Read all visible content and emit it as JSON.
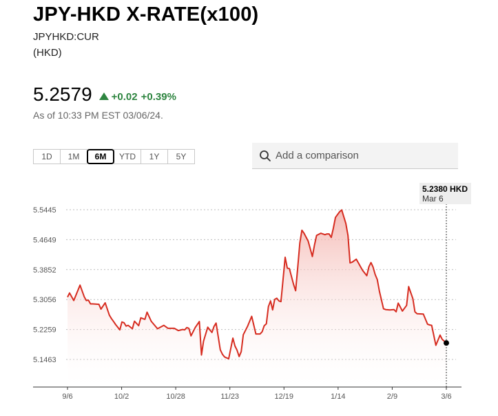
{
  "header": {
    "title": "JPY-HKD X-RATE(x100)",
    "ticker": "JPYHKD:CUR",
    "currency": "(HKD)"
  },
  "quote": {
    "price": "5.2579",
    "change": "+0.02",
    "change_pct": "+0.39%",
    "as_of": "As of 10:33 PM EST 03/06/24."
  },
  "ranges": [
    "1D",
    "1M",
    "6M",
    "YTD",
    "1Y",
    "5Y"
  ],
  "active_range": "6M",
  "compare": {
    "placeholder": "Add a comparison"
  },
  "tooltip": {
    "value": "5.2380 HKD",
    "date": "Mar 6"
  },
  "colors": {
    "line": "#d62b1f",
    "up": "#2e8540",
    "fill_top": "#f3b0aa"
  },
  "icons": {
    "search": "search-icon",
    "up": "triangle-up-icon"
  },
  "chart_data": {
    "type": "area",
    "x_ticks": [
      "9/6",
      "10/2",
      "10/28",
      "11/23",
      "12/19",
      "1/14",
      "2/9",
      "3/6"
    ],
    "y_ticks": [
      "5.5445",
      "5.4649",
      "5.3852",
      "5.3056",
      "5.2259",
      "5.1463"
    ],
    "ylim": [
      5.12,
      5.56
    ],
    "grid": true,
    "series": [
      {
        "x": [
          0,
          1,
          3,
          6,
          8,
          9,
          10,
          11,
          12,
          15,
          16,
          18,
          20,
          21,
          22,
          23,
          25,
          26,
          27,
          28,
          29,
          31,
          32,
          34,
          35,
          37,
          38,
          40,
          43,
          46,
          48,
          51,
          53,
          55,
          56,
          57,
          58,
          59,
          61,
          63,
          64,
          65,
          67,
          68,
          69,
          70,
          71,
          72,
          73,
          74,
          75,
          77,
          79,
          80,
          81,
          82,
          83,
          84,
          86,
          88,
          90,
          92,
          93,
          94,
          95,
          96,
          97,
          98,
          99,
          100,
          101,
          102,
          104,
          105,
          106,
          108,
          109,
          110,
          111,
          112,
          113,
          115,
          117,
          118,
          119,
          121,
          123,
          124,
          125,
          126,
          127,
          128,
          130,
          131,
          133,
          134,
          135,
          136,
          138,
          140,
          141,
          143,
          144,
          145,
          146,
          147,
          148,
          149,
          151,
          152,
          154,
          156,
          157,
          158,
          159,
          160,
          162,
          163,
          165,
          166,
          167,
          170,
          172,
          173,
          174,
          176,
          178,
          179,
          181
        ],
        "values": [
          5.312,
          5.323,
          5.303,
          5.344,
          5.313,
          5.303,
          5.304,
          5.294,
          5.294,
          5.293,
          5.28,
          5.297,
          5.264,
          5.255,
          5.247,
          5.239,
          5.225,
          5.246,
          5.244,
          5.235,
          5.237,
          5.228,
          5.248,
          5.236,
          5.257,
          5.253,
          5.272,
          5.248,
          5.228,
          5.237,
          5.229,
          5.229,
          5.223,
          5.226,
          5.225,
          5.231,
          5.229,
          5.209,
          5.231,
          5.247,
          5.158,
          5.195,
          5.232,
          5.225,
          5.218,
          5.234,
          5.243,
          5.207,
          5.172,
          5.16,
          5.153,
          5.148,
          5.203,
          5.182,
          5.171,
          5.154,
          5.167,
          5.212,
          5.234,
          5.261,
          5.214,
          5.214,
          5.22,
          5.236,
          5.241,
          5.287,
          5.302,
          5.278,
          5.306,
          5.309,
          5.302,
          5.3,
          5.418,
          5.389,
          5.388,
          5.346,
          5.329,
          5.392,
          5.456,
          5.49,
          5.482,
          5.461,
          5.42,
          5.451,
          5.476,
          5.482,
          5.478,
          5.48,
          5.48,
          5.471,
          5.495,
          5.524,
          5.539,
          5.544,
          5.508,
          5.476,
          5.403,
          5.405,
          5.413,
          5.393,
          5.383,
          5.369,
          5.393,
          5.404,
          5.392,
          5.372,
          5.359,
          5.328,
          5.281,
          5.279,
          5.278,
          5.279,
          5.273,
          5.296,
          5.286,
          5.275,
          5.29,
          5.34,
          5.308,
          5.273,
          5.268,
          5.267,
          5.24,
          5.238,
          5.237,
          5.184,
          5.211,
          5.2,
          5.19
        ]
      }
    ]
  }
}
